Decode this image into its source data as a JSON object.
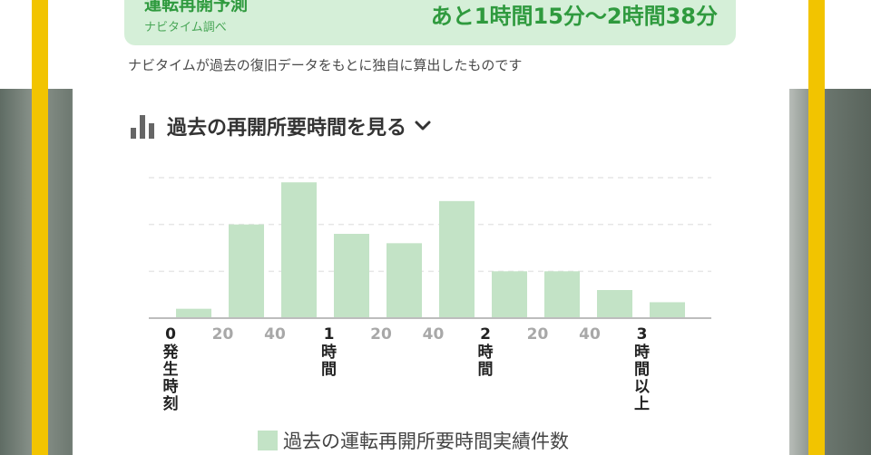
{
  "forecast": {
    "title": "運転再開予測",
    "source": "ナビタイム調べ",
    "value": "あと1時間15分〜2時間38分"
  },
  "note": "ナビタイムが過去の復旧データをもとに独自に算出したものです",
  "history_toggle": {
    "label": "過去の再開所要時間を見る",
    "icon": "bar-chart-icon",
    "chevron": "chevron-down-icon"
  },
  "colors": {
    "accent": "#2f9a3e",
    "box_bg": "#d5efd8",
    "bar": "#c3e3c6",
    "yellow": "#f2c400"
  },
  "chart_data": {
    "type": "bar",
    "categories": [
      "0-20分",
      "20-40分",
      "40分-1時間",
      "1時間-1時間20分",
      "1時間20分-1時間40分",
      "1時間40分-2時間",
      "2時間-2時間20分",
      "2時間20分-2時間40分",
      "2時間40分-3時間",
      "3時間以上"
    ],
    "series": [
      {
        "name": "過去の運転再開所要時間実績件数",
        "values": [
          1,
          10,
          14.5,
          9,
          8,
          12.5,
          5,
          5,
          3,
          1.7
        ]
      }
    ],
    "ylim": [
      0,
      15
    ],
    "grid": true,
    "tick_labels": [
      {
        "text": "0",
        "slot": 0,
        "major": true,
        "sub": "発生時刻"
      },
      {
        "text": "20",
        "slot": 1,
        "major": false,
        "sub": ""
      },
      {
        "text": "40",
        "slot": 2,
        "major": false,
        "sub": ""
      },
      {
        "text": "1",
        "slot": 3,
        "major": true,
        "sub": "時間"
      },
      {
        "text": "20",
        "slot": 4,
        "major": false,
        "sub": ""
      },
      {
        "text": "40",
        "slot": 5,
        "major": false,
        "sub": ""
      },
      {
        "text": "2",
        "slot": 6,
        "major": true,
        "sub": "時間"
      },
      {
        "text": "20",
        "slot": 7,
        "major": false,
        "sub": ""
      },
      {
        "text": "40",
        "slot": 8,
        "major": false,
        "sub": ""
      },
      {
        "text": "3",
        "slot": 9,
        "major": true,
        "sub": "時間以上"
      }
    ],
    "legend": "bottom"
  }
}
